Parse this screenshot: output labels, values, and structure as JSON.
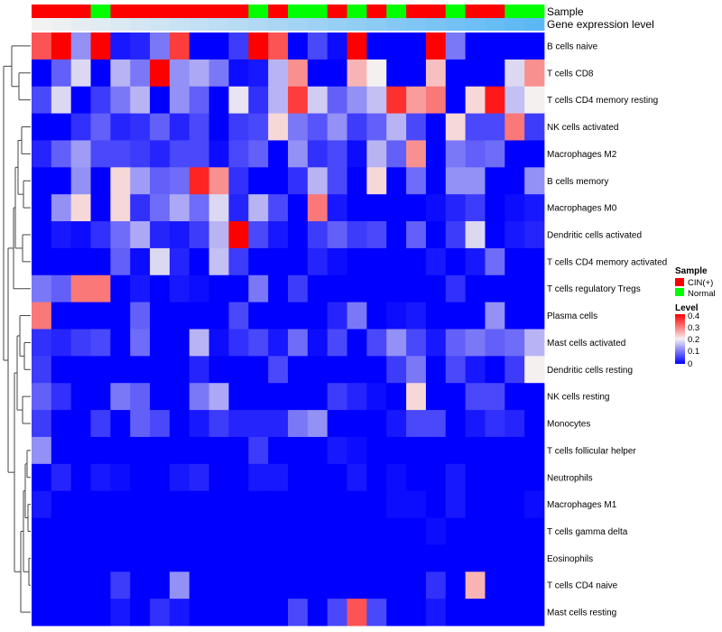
{
  "chart_data": {
    "type": "heatmap",
    "annotation_labels": {
      "sample": "Sample",
      "gene_expression": "Gene expression level"
    },
    "column_samples": [
      "CIN(+)",
      "CIN(+)",
      "CIN(+)",
      "Normal",
      "CIN(+)",
      "CIN(+)",
      "CIN(+)",
      "CIN(+)",
      "CIN(+)",
      "CIN(+)",
      "CIN(+)",
      "Normal",
      "CIN(+)",
      "Normal",
      "Normal",
      "CIN(+)",
      "Normal",
      "CIN(+)",
      "Normal",
      "CIN(+)",
      "CIN(+)",
      "Normal",
      "CIN(+)",
      "CIN(+)",
      "Normal",
      "Normal"
    ],
    "gene_expression_level": [
      0.0,
      0.04,
      0.08,
      0.12,
      0.16,
      0.2,
      0.24,
      0.28,
      0.32,
      0.36,
      0.4,
      0.44,
      0.48,
      0.52,
      0.56,
      0.6,
      0.64,
      0.68,
      0.72,
      0.76,
      0.8,
      0.84,
      0.88,
      0.92,
      0.96,
      1.0
    ],
    "rows": [
      "B cells naive",
      "T cells CD8",
      "T cells CD4 memory resting",
      "NK cells activated",
      "Macrophages M2",
      "B cells memory",
      "Macrophages M0",
      "Dendritic cells activated",
      "T cells CD4 memory activated",
      "T cells regulatory  Tregs",
      "Plasma cells",
      "Mast cells activated",
      "Dendritic cells resting",
      "NK cells resting",
      "Monocytes",
      "T cells follicular helper",
      "Neutrophils",
      "Macrophages M1",
      "T cells gamma delta",
      "Eosinophils",
      "T cells CD4 naive",
      "Mast cells resting"
    ],
    "values": [
      [
        0.33,
        0.4,
        0.12,
        0.4,
        0.02,
        0.03,
        0.1,
        0.35,
        0.0,
        0.0,
        0.05,
        0.4,
        0.33,
        0.0,
        0.06,
        0.01,
        0.4,
        0.0,
        0.0,
        0.0,
        0.4,
        0.1,
        0.0,
        0.0,
        0.0,
        0.0
      ],
      [
        0.0,
        0.08,
        0.18,
        0.0,
        0.15,
        0.1,
        0.4,
        0.12,
        0.14,
        0.1,
        0.01,
        0.02,
        0.15,
        0.28,
        0.0,
        0.0,
        0.25,
        0.2,
        0.0,
        0.0,
        0.24,
        0.0,
        0.0,
        0.0,
        0.18,
        0.28
      ],
      [
        0.06,
        0.18,
        0.0,
        0.05,
        0.1,
        0.15,
        0.0,
        0.12,
        0.08,
        0.0,
        0.19,
        0.04,
        0.15,
        0.35,
        0.17,
        0.08,
        0.12,
        0.16,
        0.36,
        0.27,
        0.3,
        0.0,
        0.22,
        0.38,
        0.16,
        0.2
      ],
      [
        0.0,
        0.0,
        0.04,
        0.08,
        0.03,
        0.04,
        0.08,
        0.03,
        0.06,
        0.0,
        0.05,
        0.06,
        0.22,
        0.1,
        0.07,
        0.12,
        0.05,
        0.08,
        0.15,
        0.06,
        0.0,
        0.22,
        0.06,
        0.06,
        0.3,
        0.05
      ],
      [
        0.03,
        0.08,
        0.13,
        0.06,
        0.06,
        0.05,
        0.03,
        0.06,
        0.06,
        0.01,
        0.06,
        0.08,
        0.0,
        0.12,
        0.04,
        0.06,
        0.01,
        0.15,
        0.08,
        0.28,
        0.0,
        0.1,
        0.08,
        0.09,
        0.0,
        0.0
      ],
      [
        0.0,
        0.0,
        0.12,
        0.0,
        0.22,
        0.13,
        0.08,
        0.09,
        0.37,
        0.28,
        0.04,
        0.0,
        0.0,
        0.04,
        0.15,
        0.06,
        0.0,
        0.22,
        0.0,
        0.09,
        0.0,
        0.12,
        0.12,
        0.0,
        0.0,
        0.12
      ],
      [
        0.0,
        0.12,
        0.22,
        0.0,
        0.22,
        0.04,
        0.09,
        0.14,
        0.09,
        0.18,
        0.03,
        0.15,
        0.06,
        0.0,
        0.3,
        0.02,
        0.0,
        0.0,
        0.0,
        0.0,
        0.01,
        0.03,
        0.05,
        0.0,
        0.01,
        0.02
      ],
      [
        0.0,
        0.02,
        0.01,
        0.04,
        0.09,
        0.14,
        0.03,
        0.02,
        0.05,
        0.15,
        0.4,
        0.06,
        0.02,
        0.0,
        0.05,
        0.08,
        0.05,
        0.06,
        0.0,
        0.08,
        0.0,
        0.05,
        0.18,
        0.0,
        0.02,
        0.03
      ],
      [
        0.0,
        0.0,
        0.0,
        0.0,
        0.08,
        0.01,
        0.18,
        0.03,
        0.0,
        0.16,
        0.05,
        0.0,
        0.0,
        0.0,
        0.03,
        0.01,
        0.0,
        0.0,
        0.0,
        0.0,
        0.02,
        0.0,
        0.02,
        0.09,
        0.0,
        0.0
      ],
      [
        0.1,
        0.08,
        0.3,
        0.3,
        0.0,
        0.02,
        0.0,
        0.02,
        0.01,
        0.0,
        0.0,
        0.1,
        0.0,
        0.05,
        0.0,
        0.0,
        0.0,
        0.0,
        0.0,
        0.0,
        0.0,
        0.04,
        0.0,
        0.0,
        0.0,
        0.0
      ],
      [
        0.3,
        0.0,
        0.0,
        0.0,
        0.0,
        0.08,
        0.0,
        0.0,
        0.0,
        0.0,
        0.06,
        0.0,
        0.0,
        0.0,
        0.0,
        0.03,
        0.1,
        0.0,
        0.01,
        0.02,
        0.0,
        0.0,
        0.0,
        0.12,
        0.0,
        0.0
      ],
      [
        0.04,
        0.03,
        0.05,
        0.06,
        0.0,
        0.09,
        0.0,
        0.0,
        0.15,
        0.01,
        0.04,
        0.06,
        0.02,
        0.09,
        0.01,
        0.06,
        0.0,
        0.06,
        0.12,
        0.06,
        0.02,
        0.08,
        0.1,
        0.08,
        0.09,
        0.15
      ],
      [
        0.05,
        0.0,
        0.0,
        0.0,
        0.0,
        0.0,
        0.0,
        0.0,
        0.03,
        0.0,
        0.0,
        0.0,
        0.06,
        0.0,
        0.0,
        0.0,
        0.0,
        0.0,
        0.05,
        0.1,
        0.0,
        0.06,
        0.02,
        0.0,
        0.05,
        0.2
      ],
      [
        0.08,
        0.04,
        0.0,
        0.0,
        0.1,
        0.08,
        0.0,
        0.0,
        0.1,
        0.14,
        0.0,
        0.0,
        0.0,
        0.0,
        0.0,
        0.05,
        0.03,
        0.01,
        0.0,
        0.22,
        0.0,
        0.0,
        0.06,
        0.06,
        0.0,
        0.0
      ],
      [
        0.05,
        0.0,
        0.0,
        0.05,
        0.0,
        0.08,
        0.06,
        0.0,
        0.02,
        0.05,
        0.03,
        0.03,
        0.03,
        0.1,
        0.12,
        0.0,
        0.0,
        0.0,
        0.02,
        0.06,
        0.06,
        0.0,
        0.02,
        0.04,
        0.03,
        0.0
      ],
      [
        0.12,
        0.0,
        0.0,
        0.0,
        0.0,
        0.0,
        0.0,
        0.0,
        0.0,
        0.0,
        0.0,
        0.05,
        0.0,
        0.0,
        0.0,
        0.02,
        0.01,
        0.0,
        0.0,
        0.0,
        0.0,
        0.0,
        0.0,
        0.0,
        0.0,
        0.0
      ],
      [
        0.0,
        0.03,
        0.0,
        0.02,
        0.01,
        0.0,
        0.0,
        0.02,
        0.03,
        0.0,
        0.0,
        0.02,
        0.02,
        0.0,
        0.0,
        0.0,
        0.02,
        0.0,
        0.01,
        0.0,
        0.0,
        0.02,
        0.0,
        0.0,
        0.0,
        0.0
      ],
      [
        0.02,
        0.0,
        0.0,
        0.0,
        0.0,
        0.0,
        0.0,
        0.0,
        0.0,
        0.0,
        0.0,
        0.0,
        0.0,
        0.0,
        0.0,
        0.0,
        0.0,
        0.0,
        0.01,
        0.01,
        0.0,
        0.02,
        0.0,
        0.0,
        0.0,
        0.01
      ],
      [
        0.0,
        0.0,
        0.0,
        0.0,
        0.0,
        0.0,
        0.0,
        0.0,
        0.0,
        0.0,
        0.0,
        0.0,
        0.0,
        0.0,
        0.0,
        0.0,
        0.0,
        0.0,
        0.0,
        0.0,
        0.01,
        0.0,
        0.0,
        0.0,
        0.0,
        0.0
      ],
      [
        0.0,
        0.0,
        0.0,
        0.0,
        0.0,
        0.0,
        0.0,
        0.0,
        0.0,
        0.0,
        0.0,
        0.0,
        0.0,
        0.0,
        0.0,
        0.0,
        0.0,
        0.0,
        0.0,
        0.0,
        0.0,
        0.0,
        0.0,
        0.0,
        0.0,
        0.0
      ],
      [
        0.0,
        0.0,
        0.0,
        0.0,
        0.05,
        0.0,
        0.0,
        0.12,
        0.0,
        0.0,
        0.0,
        0.0,
        0.0,
        0.0,
        0.0,
        0.0,
        0.0,
        0.0,
        0.0,
        0.0,
        0.04,
        0.0,
        0.25,
        0.0,
        0.0,
        0.0
      ],
      [
        0.0,
        0.0,
        0.0,
        0.0,
        0.02,
        0.0,
        0.04,
        0.02,
        0.0,
        0.0,
        0.0,
        0.0,
        0.0,
        0.06,
        0.0,
        0.06,
        0.33,
        0.06,
        0.0,
        0.0,
        0.02,
        0.0,
        0.0,
        0.0,
        0.0,
        0.0
      ]
    ],
    "color_scale": {
      "min": 0,
      "mid": 0.2,
      "max": 0.4,
      "low_color": "#0000ff",
      "mid_color": "#f5f0f0",
      "high_color": "#ff0000"
    },
    "legend": {
      "sample_title": "Sample",
      "sample_entries": [
        {
          "label": "CIN(+)",
          "color": "#ff0000"
        },
        {
          "label": "Normal",
          "color": "#00ff00"
        }
      ],
      "level_title": "Level",
      "level_ticks": [
        "0.4",
        "0.3",
        "0.2",
        "0.1",
        "0"
      ],
      "placement": "right"
    },
    "gene_expression_colors": {
      "low": "#f2f2f2",
      "high": "#5cb8f5"
    }
  }
}
